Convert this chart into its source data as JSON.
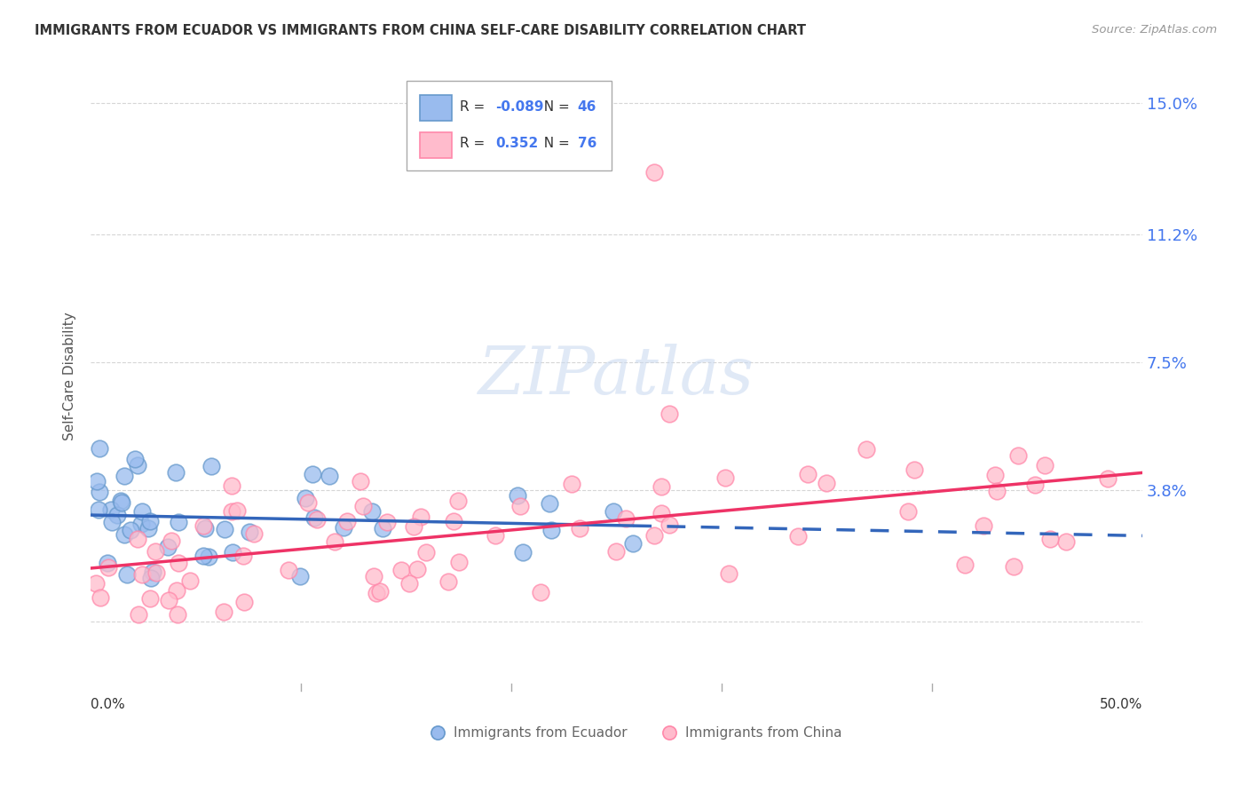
{
  "title": "IMMIGRANTS FROM ECUADOR VS IMMIGRANTS FROM CHINA SELF-CARE DISABILITY CORRELATION CHART",
  "source": "Source: ZipAtlas.com",
  "ylabel": "Self-Care Disability",
  "yticks": [
    0.0,
    0.038,
    0.075,
    0.112,
    0.15
  ],
  "ytick_labels": [
    "",
    "3.8%",
    "7.5%",
    "11.2%",
    "15.0%"
  ],
  "xlim": [
    0.0,
    0.5
  ],
  "ylim": [
    -0.018,
    0.16
  ],
  "watermark": "ZIPatlas",
  "ecuador_scatter_color": "#99bbee",
  "ecuador_edge_color": "#6699cc",
  "china_scatter_color": "#ffbbcc",
  "china_edge_color": "#ff88aa",
  "trend_ecuador_color": "#3366bb",
  "trend_china_color": "#ee3366",
  "legend_box_color": "#dddddd",
  "text_color": "#333333",
  "source_color": "#999999",
  "rn_color": "#4477ee",
  "grid_color": "#cccccc",
  "bottom_legend_color": "#666666"
}
